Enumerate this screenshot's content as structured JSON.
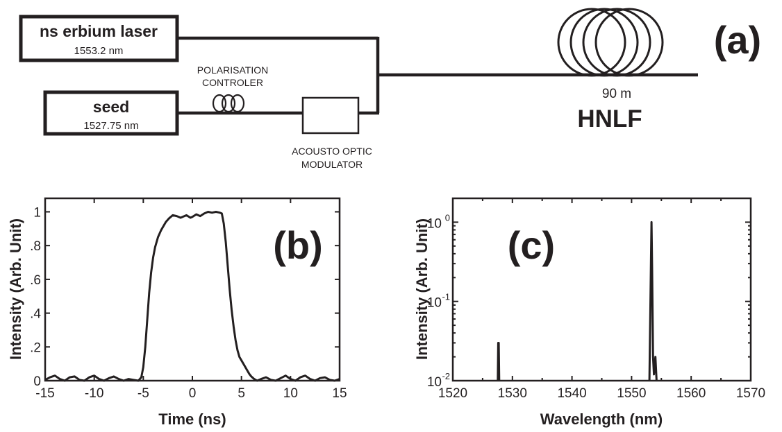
{
  "panel_a": {
    "label": "(a)",
    "laser": {
      "title": "ns erbium laser",
      "wavelength": "1553.2  nm"
    },
    "seed": {
      "title": "seed",
      "wavelength": "1527.75 nm"
    },
    "polarisation": {
      "line1": "POLARISATION",
      "line2": "CONTROLER"
    },
    "aom": {
      "line1": "ACOUSTO OPTIC",
      "line2": "MODULATOR"
    },
    "fiber": {
      "length": "90 m",
      "name": "HNLF"
    }
  },
  "colors": {
    "ink": "#231f20",
    "background": "#ffffff"
  },
  "chart_data": [
    {
      "panel": "(b)",
      "type": "line",
      "xlabel": "Time (ns)",
      "ylabel": "Intensity (Arb. Unit)",
      "xlim": [
        -15,
        15
      ],
      "ylim": [
        0,
        1.08
      ],
      "xticks": [
        -15,
        -10,
        -5,
        0,
        5,
        10,
        15
      ],
      "xtick_labels": [
        "-15",
        "-10",
        "-5",
        "0",
        "5",
        "10",
        "15"
      ],
      "yticks": [
        0,
        0.2,
        0.4,
        0.6,
        0.8,
        1
      ],
      "ytick_labels": [
        "0",
        ".2",
        ".4",
        ".6",
        ".8",
        "1"
      ],
      "grid": false,
      "x": [
        -15,
        -14.5,
        -14,
        -13.5,
        -13,
        -12.5,
        -12,
        -11.5,
        -11,
        -10.5,
        -10,
        -9.5,
        -9,
        -8.5,
        -8,
        -7.5,
        -7,
        -6.5,
        -6,
        -5.5,
        -5.2,
        -5,
        -4.8,
        -4.6,
        -4.4,
        -4.2,
        -4,
        -3.8,
        -3.5,
        -3.2,
        -3,
        -2.7,
        -2.4,
        -2,
        -1.6,
        -1.2,
        -1,
        -0.6,
        -0.2,
        0,
        0.4,
        0.8,
        1.2,
        1.6,
        2,
        2.4,
        2.8,
        3,
        3.2,
        3.4,
        3.6,
        3.8,
        4,
        4.2,
        4.4,
        4.6,
        4.8,
        5,
        5.2,
        5.4,
        5.6,
        5.8,
        6,
        6.3,
        6.6,
        7,
        7.5,
        8,
        8.5,
        9,
        9.5,
        10,
        10.5,
        11,
        11.5,
        12,
        12.5,
        13,
        13.5,
        14,
        14.5,
        15
      ],
      "y": [
        0.005,
        0.02,
        0.03,
        0.01,
        0.0,
        0.02,
        0.025,
        0.005,
        0.0,
        0.02,
        0.03,
        0.01,
        0.0,
        0.015,
        0.025,
        0.01,
        0.0,
        0.01,
        0.005,
        0.0,
        0.02,
        0.08,
        0.2,
        0.36,
        0.52,
        0.64,
        0.73,
        0.79,
        0.85,
        0.89,
        0.91,
        0.94,
        0.96,
        0.98,
        0.975,
        0.965,
        0.97,
        0.98,
        0.965,
        0.97,
        0.985,
        0.975,
        0.99,
        1.0,
        0.995,
        1.0,
        0.995,
        0.99,
        0.93,
        0.82,
        0.68,
        0.54,
        0.42,
        0.32,
        0.24,
        0.18,
        0.14,
        0.12,
        0.1,
        0.08,
        0.06,
        0.04,
        0.025,
        0.01,
        0.0,
        0.01,
        0.02,
        0.005,
        0.0,
        0.015,
        0.03,
        0.01,
        0.0,
        0.02,
        0.03,
        0.01,
        0.0,
        0.015,
        0.02,
        0.005,
        0.0,
        0.01
      ]
    },
    {
      "panel": "(c)",
      "type": "line",
      "xlabel": "Wavelength (nm)",
      "ylabel": "Intensity (Arb. Unit)",
      "xlim": [
        1520,
        1570
      ],
      "ylim": [
        0.01,
        2
      ],
      "yscale": "log",
      "xticks": [
        1520,
        1530,
        1540,
        1550,
        1560,
        1570
      ],
      "xtick_labels": [
        "1520",
        "1530",
        "1540",
        "1550",
        "1560",
        "1570"
      ],
      "yticks": [
        0.01,
        0.1,
        1
      ],
      "ytick_labels": [
        [
          "10",
          "-2"
        ],
        [
          "10",
          "-1"
        ],
        [
          "10",
          "0"
        ]
      ],
      "grid": false,
      "series": [
        {
          "x": [
            1527.55,
            1527.62,
            1527.7,
            1527.78
          ],
          "y": [
            0.01,
            0.03,
            0.03,
            0.01
          ]
        },
        {
          "x": [
            1553.0,
            1553.25,
            1553.35,
            1553.45,
            1553.6,
            1553.75,
            1554.0,
            1554.2
          ],
          "y": [
            0.01,
            0.3,
            1.0,
            0.25,
            0.02,
            0.012,
            0.02,
            0.01
          ]
        }
      ]
    }
  ]
}
